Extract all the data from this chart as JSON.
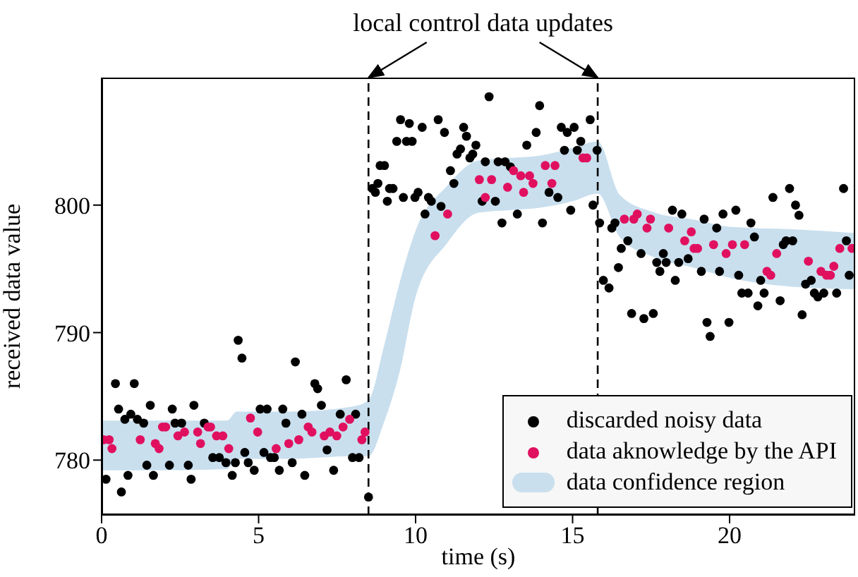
{
  "chart_data": {
    "type": "scatter",
    "xlabel": "time (s)",
    "ylabel": "received data value",
    "annotations": [
      "local control data updates"
    ],
    "xlim": [
      0,
      24
    ],
    "ylim": [
      775.7,
      810
    ],
    "xticks": [
      0,
      5,
      10,
      15,
      20
    ],
    "yticks": [
      780,
      790,
      800
    ],
    "marker": "circle",
    "legend": "bottom right",
    "ref_lines": [
      {
        "axis": "x",
        "value": 8.5,
        "line_style": "dashed",
        "color": "#000000"
      },
      {
        "axis": "x",
        "value": 15.8,
        "line_style": "dashed",
        "color": "#000000"
      }
    ],
    "series": [
      {
        "name": "discarded noisy data",
        "color": "#000000",
        "x": [
          0.14,
          0.44,
          0.54,
          0.63,
          0.74,
          0.84,
          0.93,
          1.04,
          1.14,
          1.34,
          1.44,
          1.55,
          1.65,
          2.16,
          2.25,
          2.34,
          2.55,
          2.76,
          2.85,
          2.94,
          3.27,
          3.54,
          3.75,
          3.96,
          4.16,
          4.26,
          4.35,
          4.47,
          4.56,
          4.67,
          4.86,
          5.05,
          5.17,
          5.27,
          5.38,
          5.5,
          5.66,
          5.77,
          5.87,
          6.07,
          6.17,
          6.38,
          6.47,
          6.79,
          6.88,
          7.0,
          7.18,
          7.39,
          7.6,
          7.79,
          7.99,
          8.09,
          8.2,
          8.5,
          8.62,
          8.72,
          8.8,
          8.87,
          9.01,
          9.1,
          9.17,
          9.28,
          9.4,
          9.52,
          9.61,
          9.71,
          9.8,
          9.89,
          9.98,
          10.08,
          10.21,
          10.3,
          10.41,
          10.5,
          10.72,
          10.81,
          10.92,
          11.11,
          11.22,
          11.32,
          11.43,
          11.53,
          11.62,
          11.73,
          11.82,
          11.92,
          12.12,
          12.22,
          12.34,
          12.54,
          12.63,
          12.75,
          12.85,
          13.02,
          13.24,
          13.54,
          13.84,
          13.95,
          14.04,
          14.25,
          14.53,
          14.64,
          14.74,
          14.83,
          14.94,
          15.05,
          15.15,
          15.26,
          15.56,
          15.65,
          15.78,
          15.86,
          15.98,
          16.16,
          16.25,
          16.35,
          16.46,
          16.55,
          16.76,
          16.88,
          17.18,
          17.27,
          17.57,
          17.68,
          17.78,
          17.89,
          17.98,
          18.18,
          18.27,
          18.38,
          18.48,
          18.68,
          19.1,
          19.19,
          19.28,
          19.38,
          19.59,
          19.68,
          19.79,
          19.98,
          20.2,
          20.29,
          20.39,
          20.59,
          20.68,
          20.79,
          20.9,
          20.99,
          21.1,
          21.38,
          21.61,
          21.71,
          21.8,
          21.91,
          22.01,
          22.1,
          22.21,
          22.31,
          22.42,
          22.6,
          22.7,
          22.81,
          23.0,
          23.41,
          23.63,
          23.72,
          23.81
        ],
        "values": [
          778.5,
          786.0,
          784.0,
          777.5,
          783.2,
          778.8,
          783.6,
          786.0,
          783.2,
          782.9,
          779.6,
          784.3,
          778.8,
          779.6,
          784.0,
          782.9,
          782.9,
          779.6,
          778.5,
          784.3,
          782.9,
          780.2,
          780.2,
          779.8,
          778.8,
          779.8,
          789.4,
          788.0,
          780.6,
          779.8,
          779.2,
          784.0,
          780.6,
          784.0,
          780.2,
          780.2,
          779.2,
          784.0,
          782.9,
          779.8,
          787.7,
          783.6,
          778.8,
          786.0,
          785.6,
          784.3,
          780.8,
          779.2,
          783.6,
          786.3,
          780.2,
          783.6,
          780.2,
          777.1,
          801.3,
          801.0,
          801.7,
          803.1,
          803.1,
          800.3,
          801.3,
          801.3,
          805.0,
          806.7,
          800.6,
          805.0,
          806.4,
          805.0,
          800.6,
          801.0,
          806.1,
          799.3,
          800.6,
          800.3,
          806.7,
          799.9,
          805.7,
          802.7,
          801.7,
          804.0,
          804.4,
          806.1,
          805.4,
          803.7,
          804.0,
          804.7,
          800.3,
          803.4,
          808.5,
          800.3,
          803.4,
          798.6,
          803.4,
          803.0,
          799.3,
          804.7,
          805.7,
          807.8,
          798.6,
          801.0,
          800.6,
          806.1,
          804.3,
          805.7,
          799.6,
          806.1,
          804.3,
          805.0,
          806.7,
          800.0,
          804.3,
          798.6,
          794.1,
          793.5,
          798.2,
          798.6,
          795.1,
          796.6,
          797.2,
          791.5,
          796.2,
          791.1,
          791.5,
          795.5,
          794.8,
          796.2,
          795.5,
          799.6,
          794.1,
          795.5,
          799.3,
          795.8,
          794.8,
          798.9,
          790.8,
          789.7,
          798.2,
          794.8,
          799.3,
          790.8,
          799.6,
          794.5,
          793.1,
          793.1,
          798.6,
          797.5,
          792.1,
          794.1,
          793.1,
          800.6,
          792.5,
          796.9,
          797.2,
          801.3,
          797.2,
          800.0,
          799.2,
          791.4,
          793.8,
          794.1,
          793.1,
          792.8,
          793.1,
          793.1,
          801.3,
          797.2,
          794.5
        ]
      },
      {
        "name": "data aknowledge by the API",
        "color": "#e0105f",
        "x": [
          0.06,
          0.24,
          0.33,
          1.23,
          1.71,
          1.83,
          1.94,
          2.04,
          2.43,
          2.64,
          3.06,
          3.15,
          3.39,
          3.47,
          3.66,
          3.86,
          4.05,
          4.74,
          4.97,
          5.56,
          5.96,
          6.28,
          6.58,
          6.7,
          7.09,
          7.27,
          7.49,
          7.69,
          7.9,
          8.29,
          8.39,
          10.62,
          11.02,
          12.03,
          12.22,
          12.42,
          12.93,
          13.12,
          13.35,
          13.44,
          13.63,
          13.74,
          14.13,
          14.34,
          14.44,
          15.33,
          15.45,
          16.65,
          16.95,
          17.06,
          17.37,
          17.48,
          18.06,
          18.57,
          18.78,
          18.87,
          18.98,
          19.49,
          19.89,
          20.09,
          20.48,
          21.19,
          21.31,
          21.5,
          22.51,
          22.91,
          23.09,
          23.21,
          23.32,
          23.51,
          23.9
        ],
        "values": [
          781.6,
          781.6,
          780.9,
          781.6,
          781.3,
          780.9,
          782.6,
          782.6,
          781.9,
          782.2,
          782.2,
          781.3,
          782.6,
          782.6,
          781.9,
          781.9,
          780.9,
          783.3,
          782.2,
          780.9,
          781.3,
          781.6,
          782.6,
          782.2,
          781.9,
          782.2,
          781.9,
          782.6,
          783.2,
          781.6,
          782.2,
          797.6,
          799.3,
          802.0,
          800.6,
          802.0,
          801.4,
          802.7,
          802.3,
          801.0,
          802.3,
          801.7,
          803.1,
          801.7,
          803.1,
          803.7,
          803.7,
          798.9,
          798.9,
          799.3,
          798.2,
          798.9,
          798.2,
          797.2,
          797.9,
          796.6,
          796.6,
          796.9,
          796.2,
          796.9,
          796.9,
          794.8,
          794.5,
          796.2,
          795.6,
          794.8,
          794.5,
          794.5,
          795.2,
          796.6,
          796.6
        ]
      },
      {
        "name": "data confidence region",
        "type": "area",
        "color": "#c9dfee",
        "x": [
          0,
          2,
          4,
          4.3,
          6,
          8,
          8.5,
          9,
          9.5,
          10,
          11,
          12,
          13,
          14,
          15,
          15.8,
          16.5,
          17.5,
          19,
          20,
          22,
          24
        ],
        "values": [
          null,
          null,
          null,
          null,
          null,
          null,
          null,
          null,
          null,
          null,
          null,
          null,
          null,
          null,
          null,
          null,
          null,
          null,
          null,
          null,
          null,
          null
        ],
        "lower": [
          779.2,
          779.2,
          779.3,
          780.1,
          780.1,
          780.3,
          780.3,
          783,
          787,
          792.8,
          797,
          799.4,
          799.6,
          799.8,
          800.3,
          800.9,
          797.5,
          796,
          795,
          794.3,
          793.6,
          793.4
        ],
        "upper": [
          783.1,
          783.1,
          783.1,
          783.8,
          783.8,
          784.2,
          784.7,
          789,
          794,
          798,
          801.5,
          803.5,
          803.7,
          803.9,
          804.5,
          805,
          800.8,
          799.5,
          798.8,
          798.3,
          798.1,
          797.8
        ]
      }
    ]
  }
}
